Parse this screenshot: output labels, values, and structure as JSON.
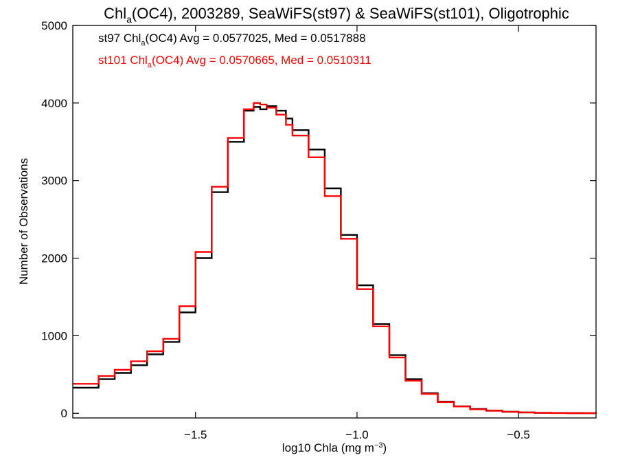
{
  "chart_data": {
    "type": "line",
    "title_parts": {
      "pre": "Chl",
      "sub": "a",
      "post": "(OC4), 2003289, SeaWiFS(st97) & SeaWiFS(st101), Oligotrophic"
    },
    "xlabel_parts": {
      "pre": "log10 Chla (mg m",
      "sup": "−3",
      "post": ")"
    },
    "ylabel": "Number of Observations",
    "xlim": [
      -1.88,
      -0.26
    ],
    "ylim": [
      -60,
      5000
    ],
    "x_ticks": [
      -1.5,
      -1.0,
      -0.5
    ],
    "x_tick_labels": [
      "−1.5",
      "−1.0",
      "−0.5"
    ],
    "y_ticks": [
      0,
      1000,
      2000,
      3000,
      4000,
      5000
    ],
    "y_tick_labels": [
      "0",
      "1000",
      "2000",
      "3000",
      "4000",
      "5000"
    ],
    "grid": false,
    "legend": [
      {
        "pre": "st97 Chl",
        "sub": "a",
        "post": "(OC4) Avg = 0.0577025, Med = 0.0517888",
        "color": "#000000"
      },
      {
        "pre": "st101 Chl",
        "sub": "a",
        "post": "(OC4) Avg = 0.0570665, Med = 0.0510311",
        "color": "#ff0000"
      }
    ],
    "series": [
      {
        "color": "#000000",
        "x": [
          -1.88,
          -1.8,
          -1.75,
          -1.7,
          -1.65,
          -1.6,
          -1.55,
          -1.5,
          -1.45,
          -1.4,
          -1.35,
          -1.32,
          -1.3,
          -1.28,
          -1.25,
          -1.22,
          -1.2,
          -1.15,
          -1.1,
          -1.05,
          -1.0,
          -0.95,
          -0.9,
          -0.85,
          -0.8,
          -0.75,
          -0.7,
          -0.65,
          -0.6,
          -0.55,
          -0.5,
          -0.45,
          -0.4,
          -0.35,
          -0.3,
          -0.26
        ],
        "y": [
          330,
          440,
          520,
          620,
          760,
          920,
          1300,
          2000,
          2850,
          3500,
          3900,
          3950,
          3920,
          3960,
          3900,
          3800,
          3650,
          3400,
          2900,
          2300,
          1650,
          1150,
          750,
          440,
          260,
          150,
          90,
          55,
          35,
          20,
          12,
          6,
          4,
          2,
          1,
          0
        ]
      },
      {
        "color": "#ff0000",
        "x": [
          -1.88,
          -1.8,
          -1.75,
          -1.7,
          -1.65,
          -1.6,
          -1.55,
          -1.5,
          -1.45,
          -1.4,
          -1.35,
          -1.32,
          -1.3,
          -1.28,
          -1.25,
          -1.22,
          -1.2,
          -1.15,
          -1.1,
          -1.05,
          -1.0,
          -0.95,
          -0.9,
          -0.85,
          -0.8,
          -0.75,
          -0.7,
          -0.65,
          -0.6,
          -0.55,
          -0.5,
          -0.45,
          -0.4,
          -0.35,
          -0.3,
          -0.26
        ],
        "y": [
          380,
          480,
          560,
          670,
          800,
          960,
          1380,
          2080,
          2920,
          3550,
          3920,
          4000,
          3980,
          3940,
          3850,
          3720,
          3580,
          3300,
          2800,
          2250,
          1600,
          1120,
          720,
          420,
          250,
          145,
          88,
          52,
          33,
          19,
          11,
          6,
          3,
          2,
          1,
          0
        ]
      }
    ]
  }
}
